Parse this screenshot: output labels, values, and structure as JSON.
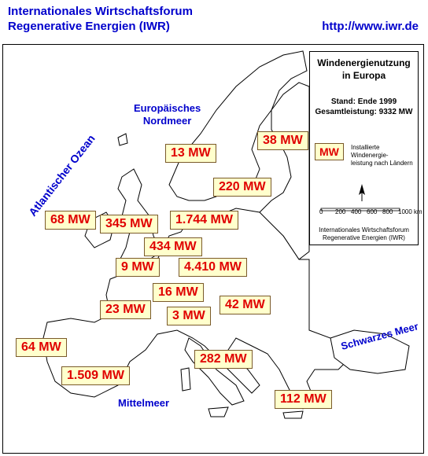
{
  "header": {
    "title_line1": "Internationales Wirtschaftsforum",
    "title_line2": "Regenerative Energien (IWR)",
    "url": "http://www.iwr.de"
  },
  "seas": {
    "nordmeer": [
      "Europäisches",
      "Nordmeer"
    ],
    "atlantik": "Atlantischer Ozean",
    "mittelmeer": "Mittelmeer",
    "schwarzes_meer": "Schwarzes Meer"
  },
  "capacity_labels": [
    "13 MW",
    "38 MW",
    "220 MW",
    "68 MW",
    "345 MW",
    "1.744 MW",
    "434 MW",
    "9 MW",
    "4.410 MW",
    "16 MW",
    "23 MW",
    "42 MW",
    "3 MW",
    "64 MW",
    "282 MW",
    "1.509 MW",
    "112 MW"
  ],
  "legend": {
    "title": [
      "Windenergienutzung",
      "in Europa"
    ],
    "status": "Stand: Ende 1999",
    "total": "Gesamtleistung: 9332 MW",
    "key": "MW",
    "key_text": [
      "Installierte Windenergie-",
      "leistung nach Ländern"
    ],
    "scale": [
      "0",
      "200",
      "400",
      "600",
      "800",
      "1000 km"
    ],
    "source": [
      "Internationales Wirtschaftsforum",
      "Regenerative Energien (IWR)"
    ]
  }
}
